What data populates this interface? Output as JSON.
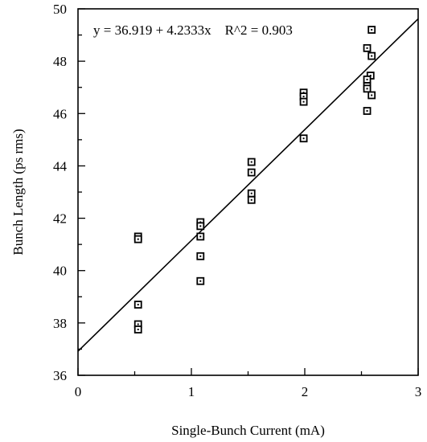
{
  "chart_data": {
    "type": "scatter",
    "title": "",
    "xlabel": "Single-Bunch Current (mA)",
    "ylabel": "Bunch Length (ps rms)",
    "xlim": [
      0,
      3
    ],
    "ylim": [
      36,
      50
    ],
    "x_ticks": [
      "0",
      "1",
      "2",
      "3"
    ],
    "y_ticks": [
      "36",
      "38",
      "40",
      "42",
      "44",
      "46",
      "48",
      "50"
    ],
    "grid": false,
    "marker": "square",
    "annotation": "y = 36.919 + 4.2333x    R^2 = 0.903",
    "fit_line": {
      "intercept": 36.919,
      "slope": 4.2333,
      "r_squared": 0.903
    },
    "points": [
      {
        "x": 0.53,
        "y": 41.3
      },
      {
        "x": 0.53,
        "y": 41.2
      },
      {
        "x": 0.53,
        "y": 38.7
      },
      {
        "x": 0.53,
        "y": 37.95
      },
      {
        "x": 0.53,
        "y": 37.75
      },
      {
        "x": 1.08,
        "y": 41.85
      },
      {
        "x": 1.08,
        "y": 41.7
      },
      {
        "x": 1.08,
        "y": 41.3
      },
      {
        "x": 1.08,
        "y": 40.55
      },
      {
        "x": 1.08,
        "y": 39.6
      },
      {
        "x": 1.53,
        "y": 44.15
      },
      {
        "x": 1.53,
        "y": 43.75
      },
      {
        "x": 1.53,
        "y": 42.95
      },
      {
        "x": 1.53,
        "y": 42.7
      },
      {
        "x": 1.99,
        "y": 46.8
      },
      {
        "x": 1.99,
        "y": 46.65
      },
      {
        "x": 1.99,
        "y": 46.45
      },
      {
        "x": 1.99,
        "y": 45.05
      },
      {
        "x": 2.59,
        "y": 49.2
      },
      {
        "x": 2.55,
        "y": 48.5
      },
      {
        "x": 2.59,
        "y": 48.2
      },
      {
        "x": 2.58,
        "y": 47.45
      },
      {
        "x": 2.55,
        "y": 47.3
      },
      {
        "x": 2.55,
        "y": 47.05
      },
      {
        "x": 2.55,
        "y": 46.95
      },
      {
        "x": 2.59,
        "y": 46.7
      },
      {
        "x": 2.55,
        "y": 46.1
      }
    ]
  }
}
